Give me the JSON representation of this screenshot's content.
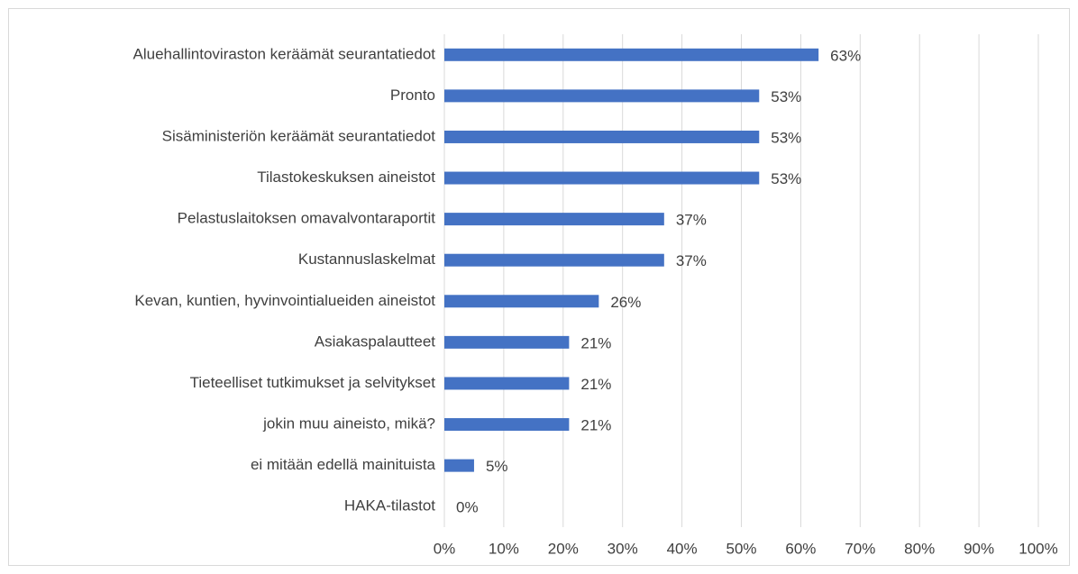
{
  "chart_data": {
    "type": "bar",
    "orientation": "horizontal",
    "categories": [
      "Aluehallintoviraston keräämät seurantatiedot",
      "Pronto",
      "Sisäministeriön keräämät seurantatiedot",
      "Tilastokeskuksen aineistot",
      "Pelastuslaitoksen omavalvontaraportit",
      "Kustannuslaskelmat",
      "Kevan, kuntien, hyvinvointialueiden aineistot",
      "Asiakaspalautteet",
      "Tieteelliset tutkimukset ja selvitykset",
      "jokin muu aineisto, mikä?",
      "ei mitään edellä mainituista",
      "HAKA-tilastot"
    ],
    "values": [
      63,
      53,
      53,
      53,
      37,
      37,
      26,
      21,
      21,
      21,
      5,
      0
    ],
    "value_labels": [
      "63%",
      "53%",
      "53%",
      "53%",
      "37%",
      "37%",
      "26%",
      "21%",
      "21%",
      "21%",
      "5%",
      "0%"
    ],
    "color": "#4472c4",
    "xlim": [
      0,
      100
    ],
    "xticks": [
      {
        "value": 0,
        "label": "0%"
      },
      {
        "value": 10,
        "label": "10%"
      },
      {
        "value": 20,
        "label": "20%"
      },
      {
        "value": 30,
        "label": "30%"
      },
      {
        "value": 40,
        "label": "40%"
      },
      {
        "value": 50,
        "label": "50%"
      },
      {
        "value": 60,
        "label": "60%"
      },
      {
        "value": 70,
        "label": "70%"
      },
      {
        "value": 80,
        "label": "80%"
      },
      {
        "value": 90,
        "label": "90%"
      },
      {
        "value": 100,
        "label": "100%"
      }
    ],
    "grid": true
  }
}
